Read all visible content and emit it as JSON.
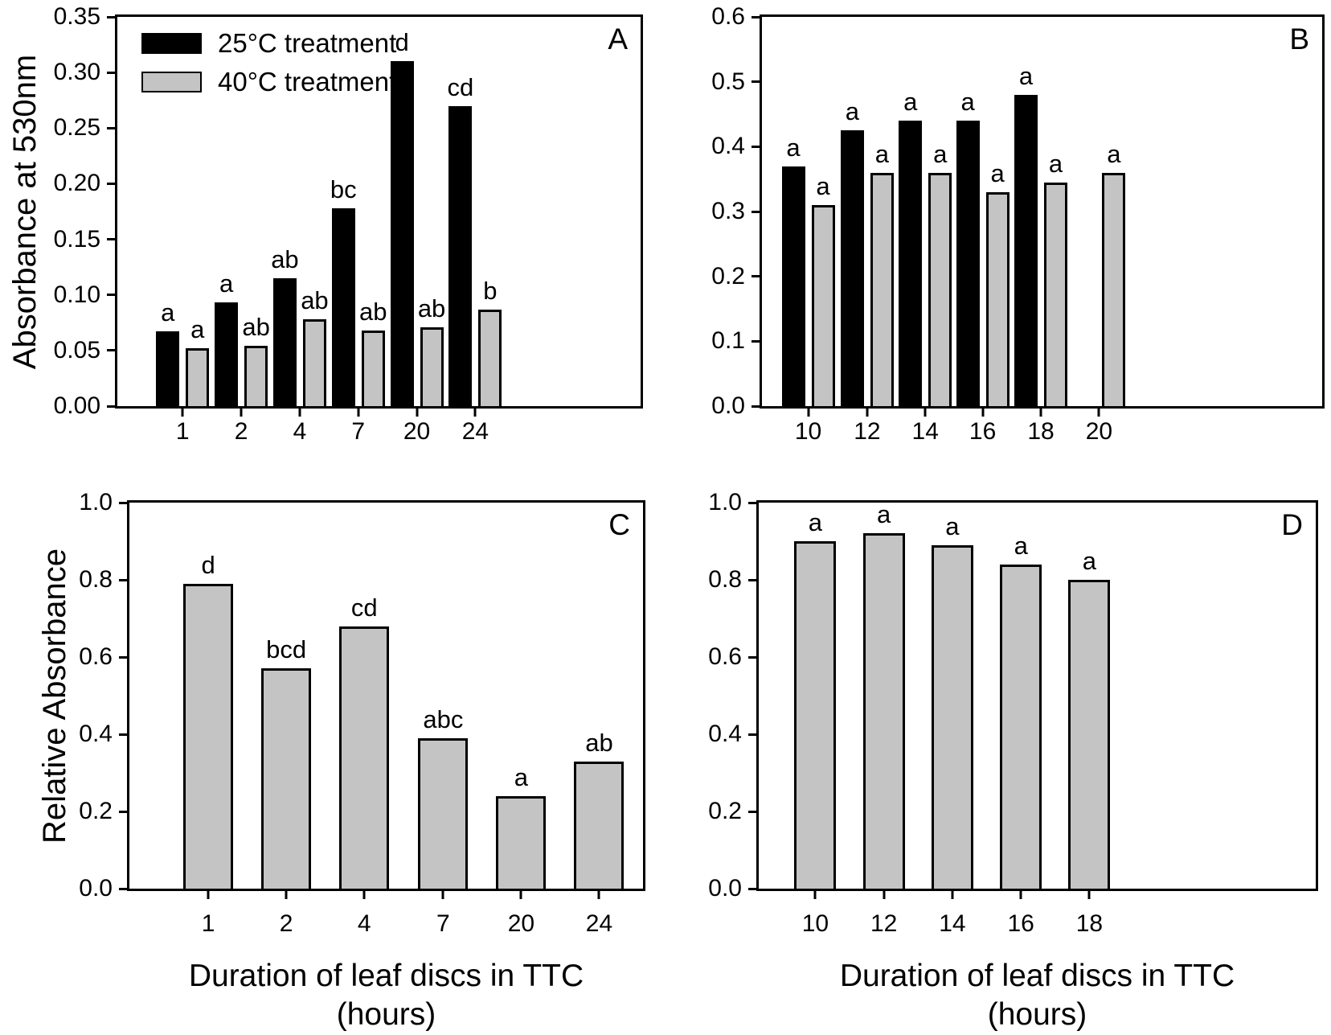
{
  "figure": {
    "y_axis_title_top": "Absorbance at 530nm",
    "y_axis_title_bottom": "Relative Absorbance",
    "x_axis_title_line1": "Duration of leaf discs in TTC",
    "x_axis_title_line2": "(hours)",
    "colors": {
      "black_bar": "#000000",
      "gray_bar": "#c4c4c4",
      "bar_border": "#000000",
      "background": "#ffffff"
    },
    "legend": {
      "position": "top-left-panel-A",
      "items": [
        {
          "label": "25°C treatment",
          "color": "#000000"
        },
        {
          "label": "40°C treatment",
          "color": "#c4c4c4"
        }
      ]
    }
  },
  "chart_data": [
    {
      "id": "A",
      "type": "bar",
      "panel_label": "A",
      "categories": [
        "1",
        "2",
        "4",
        "7",
        "20",
        "24"
      ],
      "series": [
        {
          "name": "25°C treatment",
          "color": "#000000",
          "values": [
            0.067,
            0.093,
            0.115,
            0.178,
            0.31,
            0.27
          ],
          "sig_labels": [
            "a",
            "a",
            "ab",
            "bc",
            "d",
            "cd"
          ]
        },
        {
          "name": "40°C treatment",
          "color": "#c4c4c4",
          "values": [
            0.052,
            0.054,
            0.078,
            0.068,
            0.071,
            0.087
          ],
          "sig_labels": [
            "a",
            "ab",
            "ab",
            "ab",
            "ab",
            "b"
          ]
        }
      ],
      "ylabel": "Absorbance at 530nm",
      "xlabel": null,
      "ylim": [
        0,
        0.35
      ],
      "ytick_step": 0.05,
      "ydecimals": 2,
      "grid": false,
      "legend_position": "top-left"
    },
    {
      "id": "B",
      "type": "bar",
      "panel_label": "B",
      "categories": [
        "10",
        "12",
        "14",
        "16",
        "18",
        "20"
      ],
      "series": [
        {
          "name": "25°C treatment",
          "color": "#000000",
          "values": [
            0.37,
            0.425,
            0.44,
            0.44,
            0.48,
            null
          ],
          "sig_labels": [
            "a",
            "a",
            "a",
            "a",
            "a",
            null
          ]
        },
        {
          "name": "40°C treatment",
          "color": "#c4c4c4",
          "values": [
            0.31,
            0.36,
            0.36,
            0.33,
            0.345,
            0.36
          ],
          "sig_labels": [
            "a",
            "a",
            "a",
            "a",
            "a",
            "a"
          ]
        }
      ],
      "ylabel": null,
      "xlabel": null,
      "ylim": [
        0,
        0.6
      ],
      "ytick_step": 0.1,
      "ydecimals": 1,
      "grid": false,
      "legend_position": null
    },
    {
      "id": "C",
      "type": "bar",
      "panel_label": "C",
      "categories": [
        "1",
        "2",
        "4",
        "7",
        "20",
        "24"
      ],
      "series": [
        {
          "name": "40°C treatment",
          "color": "#c4c4c4",
          "values": [
            0.79,
            0.57,
            0.68,
            0.39,
            0.24,
            0.33
          ],
          "sig_labels": [
            "d",
            "bcd",
            "cd",
            "abc",
            "a",
            "ab"
          ]
        }
      ],
      "ylabel": "Relative Absorbance",
      "xlabel": "Duration of leaf discs in TTC (hours)",
      "ylim": [
        0,
        1.0
      ],
      "ytick_step": 0.2,
      "ydecimals": 1,
      "grid": false,
      "legend_position": null
    },
    {
      "id": "D",
      "type": "bar",
      "panel_label": "D",
      "categories": [
        "10",
        "12",
        "14",
        "16",
        "18"
      ],
      "series": [
        {
          "name": "40°C treatment",
          "color": "#c4c4c4",
          "values": [
            0.9,
            0.92,
            0.89,
            0.84,
            0.8
          ],
          "sig_labels": [
            "a",
            "a",
            "a",
            "a",
            "a"
          ]
        }
      ],
      "ylabel": null,
      "xlabel": "Duration of leaf discs in TTC (hours)",
      "ylim": [
        0,
        1.0
      ],
      "ytick_step": 0.2,
      "ydecimals": 1,
      "grid": false,
      "legend_position": null
    }
  ]
}
